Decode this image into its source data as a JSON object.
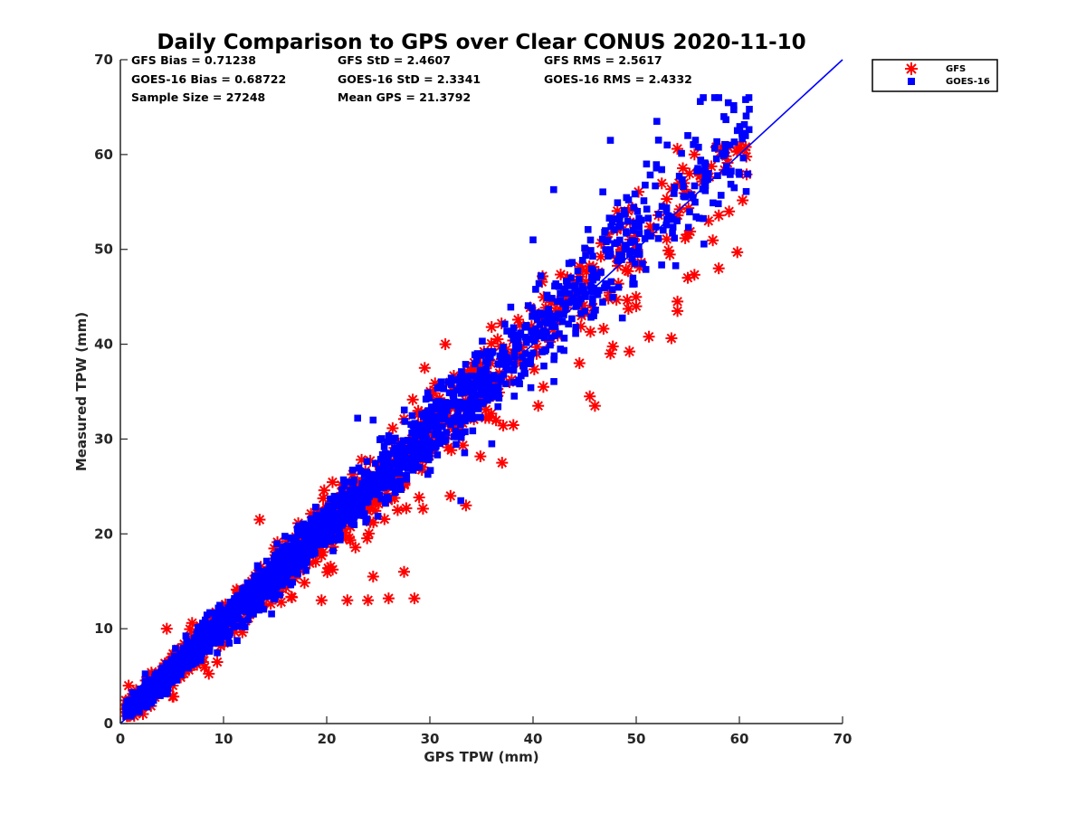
{
  "chart_data": {
    "type": "scatter",
    "title": "Daily Comparison to GPS over Clear CONUS 2020-11-10",
    "xlabel": "GPS TPW (mm)",
    "ylabel": "Measured TPW (mm)",
    "xlim": [
      0,
      70
    ],
    "ylim": [
      0,
      70
    ],
    "xticks": [
      "0",
      "10",
      "20",
      "30",
      "40",
      "50",
      "60",
      "70"
    ],
    "yticks": [
      "0",
      "10",
      "20",
      "30",
      "40",
      "50",
      "60",
      "70"
    ],
    "legend_position": "outside-top-right",
    "stats": [
      [
        "GFS Bias = 0.71238",
        "GFS StD = 2.4607",
        "GFS RMS = 2.5617"
      ],
      [
        "GOES-16 Bias = 0.68722",
        "GOES-16 StD = 2.3341",
        "GOES-16 RMS = 2.4332"
      ],
      [
        "Sample Size = 27248",
        "Mean GPS = 21.3792"
      ]
    ],
    "reference_line": {
      "name": "1:1 line",
      "x": [
        0,
        70
      ],
      "y": [
        0,
        70
      ],
      "color": "#0000ff"
    },
    "series": [
      {
        "name": "GFS",
        "marker": "asterisk",
        "color": "#ff0000",
        "bias": 0.71238,
        "std": 2.4607,
        "rms": 2.5617,
        "outliers": [
          [
            33.5,
            23.0
          ],
          [
            28.5,
            13.2
          ],
          [
            26.0,
            13.2
          ],
          [
            24.0,
            13.0
          ],
          [
            22.0,
            13.0
          ],
          [
            19.5,
            13.0
          ],
          [
            37.0,
            27.5
          ],
          [
            46.0,
            33.5
          ],
          [
            45.5,
            34.5
          ],
          [
            40.5,
            33.5
          ],
          [
            41.0,
            35.5
          ],
          [
            44.5,
            38.0
          ],
          [
            47.5,
            39.0
          ],
          [
            50.0,
            44.0
          ],
          [
            54.0,
            43.5
          ],
          [
            54.0,
            44.5
          ],
          [
            55.0,
            47.0
          ],
          [
            58.0,
            48.0
          ],
          [
            59.8,
            49.7
          ],
          [
            57.0,
            53.0
          ],
          [
            59.0,
            54.0
          ],
          [
            60.5,
            60.5
          ],
          [
            31.5,
            40.0
          ],
          [
            29.5,
            37.5
          ],
          [
            13.5,
            21.5
          ],
          [
            4.5,
            10.0
          ],
          [
            0.8,
            4.0
          ],
          [
            32.0,
            24.0
          ],
          [
            27.5,
            16.0
          ],
          [
            24.5,
            15.5
          ]
        ]
      },
      {
        "name": "GOES-16",
        "marker": "square",
        "color": "#0000ff",
        "bias": 0.68722,
        "std": 2.3341,
        "rms": 2.4332,
        "outliers": [
          [
            33.0,
            23.5
          ],
          [
            42.0,
            56.3
          ],
          [
            40.0,
            51.0
          ],
          [
            47.5,
            61.5
          ],
          [
            56.5,
            66.0
          ],
          [
            58.0,
            66.0
          ],
          [
            52.0,
            63.5
          ],
          [
            55.0,
            62.0
          ],
          [
            23.0,
            32.2
          ],
          [
            24.5,
            32.0
          ],
          [
            29.0,
            27.0
          ],
          [
            36.0,
            29.5
          ],
          [
            51.0,
            59.0
          ],
          [
            58.5,
            64.0
          ],
          [
            59.5,
            56.5
          ],
          [
            57.0,
            58.0
          ],
          [
            53.0,
            61.0
          ],
          [
            43.5,
            48.5
          ]
        ]
      }
    ]
  }
}
